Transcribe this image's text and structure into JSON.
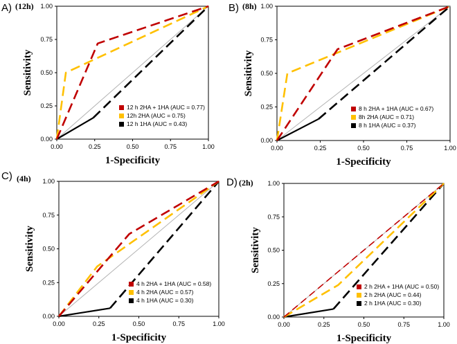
{
  "chart_data": [
    {
      "type": "line",
      "panel_label": "A)",
      "condition": "(12h)",
      "xlabel": "1-Specificity",
      "ylabel": "Sensitivity",
      "xlim": [
        0,
        1
      ],
      "ylim": [
        0,
        1
      ],
      "xticks": [
        "0.00",
        "0.25",
        "0.50",
        "0.75",
        "1.00"
      ],
      "yticks": [
        "0.00",
        "0.25",
        "0.50",
        "0.75",
        "1.00"
      ],
      "legend_position": "bottom-right",
      "series": [
        {
          "name": "12 h 2HA + 1HA (AUC = 0.77)",
          "color": "#c00000",
          "x": [
            0,
            0.27,
            1.0
          ],
          "y": [
            0,
            0.72,
            1.0
          ]
        },
        {
          "name": "12h  2HA (AUC = 0.75)",
          "color": "#ffc000",
          "x": [
            0,
            0.06,
            1.0
          ],
          "y": [
            0,
            0.5,
            1.0
          ]
        },
        {
          "name": "12 h 1HA (AUC = 0.43)",
          "color": "#000000",
          "x": [
            0,
            0.24,
            1.0
          ],
          "y": [
            0,
            0.16,
            1.0
          ]
        }
      ]
    },
    {
      "type": "line",
      "panel_label": "B)",
      "condition": "(8h)",
      "xlabel": "1-Specificity",
      "ylabel": "Sensitivity",
      "xlim": [
        0,
        1
      ],
      "ylim": [
        0,
        1
      ],
      "xticks": [
        "0.00",
        "0.25",
        "0.50",
        "0.75",
        "1.00"
      ],
      "yticks": [
        "0.00",
        "0.25",
        "0.50",
        "0.75",
        "1.00"
      ],
      "legend_position": "bottom-right",
      "series": [
        {
          "name": "8 h 2HA + 1HA (AUC = 0.67)",
          "color": "#c00000",
          "x": [
            0,
            0.35,
            1.0
          ],
          "y": [
            0,
            0.68,
            1.0
          ]
        },
        {
          "name": "8h  2HA (AUC = 0.71)",
          "color": "#ffc000",
          "x": [
            0,
            0.06,
            1.0
          ],
          "y": [
            0,
            0.5,
            1.0
          ]
        },
        {
          "name": "8 h 1HA (AUC = 0.37)",
          "color": "#000000",
          "x": [
            0,
            0.24,
            1.0
          ],
          "y": [
            0,
            0.16,
            1.0
          ]
        }
      ]
    },
    {
      "type": "line",
      "panel_label": "C)",
      "condition": "(4h)",
      "xlabel": "1-Specificity",
      "ylabel": "Sensitivity",
      "xlim": [
        0,
        1
      ],
      "ylim": [
        0,
        1
      ],
      "xticks": [
        "0.00",
        "0.25",
        "0.50",
        "0.75",
        "1.00"
      ],
      "yticks": [
        "0.00",
        "0.25",
        "0.50",
        "0.75",
        "1.00"
      ],
      "legend_position": "bottom-right",
      "series": [
        {
          "name": "4 h 2HA + 1HA (AUC = 0.58)",
          "color": "#c00000",
          "x": [
            0,
            0.44,
            1.0
          ],
          "y": [
            0,
            0.61,
            1.0
          ]
        },
        {
          "name": "4 h  2HA (AUC = 0.57)",
          "color": "#ffc000",
          "x": [
            0,
            0.24,
            1.0
          ],
          "y": [
            0,
            0.37,
            1.0
          ]
        },
        {
          "name": "4 h 1HA (AUC = 0.30)",
          "color": "#000000",
          "x": [
            0,
            0.32,
            1.0
          ],
          "y": [
            0,
            0.06,
            1.0
          ]
        }
      ]
    },
    {
      "type": "line",
      "panel_label": "D)",
      "condition": "(2h)",
      "xlabel": "1-Specificity",
      "ylabel": "Sensitivity",
      "xlim": [
        0,
        1
      ],
      "ylim": [
        0,
        1
      ],
      "xticks": [
        "0.00",
        "0.25",
        "0.50",
        "0.75",
        "1.00"
      ],
      "yticks": [
        "0.00",
        "0.25",
        "0.50",
        "0.75",
        "1.00"
      ],
      "legend_position": "bottom-right",
      "series": [
        {
          "name": "2 h 2HA + 1HA (AUC = 0.50)",
          "color": "#c00000",
          "x": [
            0,
            1.0
          ],
          "y": [
            0,
            1.0
          ]
        },
        {
          "name": "2 h  2HA (AUC = 0.44)",
          "color": "#ffc000",
          "x": [
            0,
            0.34,
            1.0
          ],
          "y": [
            0,
            0.24,
            1.0
          ]
        },
        {
          "name": "2 h 1HA (AUC = 0.30)",
          "color": "#000000",
          "x": [
            0,
            0.31,
            1.0
          ],
          "y": [
            0,
            0.06,
            1.0
          ]
        }
      ]
    }
  ]
}
